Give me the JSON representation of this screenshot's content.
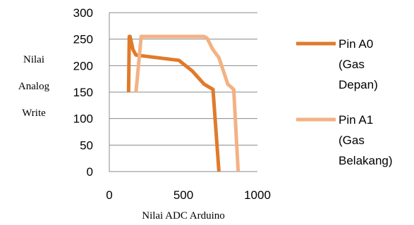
{
  "chart_data": {
    "type": "line",
    "xlabel": "Nilai ADC Arduino",
    "ylabel_lines": [
      "Nilai",
      "Analog",
      "Write"
    ],
    "xlim": [
      0,
      1000
    ],
    "ylim": [
      0,
      300
    ],
    "x_ticks": [
      "0",
      "500",
      "1000"
    ],
    "y_ticks": [
      "0",
      "50",
      "100",
      "150",
      "200",
      "250",
      "300"
    ],
    "grid": "horizontal",
    "legend_position": "right",
    "series": [
      {
        "name_lines": [
          "Pin A0",
          "(Gas",
          "Depan)"
        ],
        "color": "#E07A2B",
        "points": [
          [
            130,
            150
          ],
          [
            135,
            255
          ],
          [
            140,
            255
          ],
          [
            160,
            230
          ],
          [
            180,
            220
          ],
          [
            470,
            210
          ],
          [
            560,
            190
          ],
          [
            640,
            165
          ],
          [
            700,
            155
          ],
          [
            740,
            0
          ]
        ]
      },
      {
        "name_lines": [
          "Pin A1",
          "(Gas",
          "Belakang)"
        ],
        "color": "#F4B183",
        "points": [
          [
            180,
            150
          ],
          [
            215,
            255
          ],
          [
            230,
            255
          ],
          [
            640,
            255
          ],
          [
            660,
            252
          ],
          [
            700,
            230
          ],
          [
            740,
            215
          ],
          [
            800,
            165
          ],
          [
            840,
            155
          ],
          [
            870,
            0
          ]
        ]
      }
    ]
  }
}
